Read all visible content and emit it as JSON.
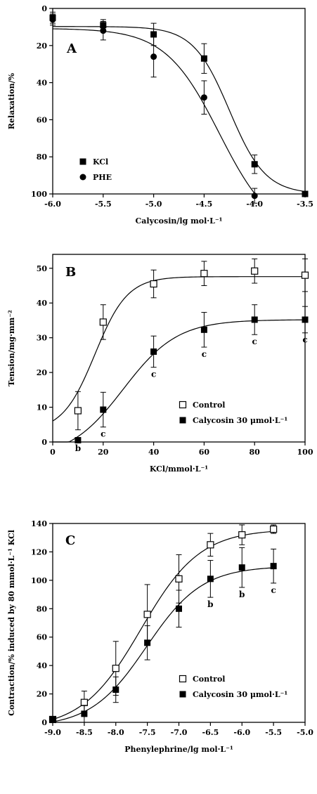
{
  "chart_data": [
    {
      "type": "scatter",
      "panel_label": "A",
      "xlabel": "Calycosin/lg mol·L⁻¹",
      "ylabel": "Relaxation/%",
      "xlim": [
        -6.0,
        -3.5
      ],
      "ylim": [
        0,
        100
      ],
      "y_inverted": true,
      "x_ticks": [
        -6.0,
        -5.5,
        -5.0,
        -4.5,
        -4.0,
        -3.5
      ],
      "x_tick_labels": [
        "-6.0",
        "-5.5",
        "-5.0",
        "-4.5",
        "-4.0",
        "-3.5"
      ],
      "y_ticks": [
        0,
        20,
        40,
        60,
        80,
        100
      ],
      "y_tick_labels": [
        "0",
        "20",
        "40",
        "60",
        "80",
        "100"
      ],
      "legend_position": "bottom-left",
      "series": [
        {
          "name": "KCl",
          "marker": "filled-square",
          "fit_curve": true,
          "points": [
            {
              "x": -6.0,
              "y": 5,
              "err": 3
            },
            {
              "x": -5.5,
              "y": 9,
              "err": 3
            },
            {
              "x": -5.0,
              "y": 14,
              "err": 6
            },
            {
              "x": -4.5,
              "y": 27,
              "err": 8
            },
            {
              "x": -4.0,
              "y": 84,
              "err": 5
            },
            {
              "x": -3.5,
              "y": 100,
              "err": 1
            }
          ]
        },
        {
          "name": "PHE",
          "marker": "filled-circle",
          "fit_curve": true,
          "points": [
            {
              "x": -6.0,
              "y": 6,
              "err": 3
            },
            {
              "x": -5.5,
              "y": 12,
              "err": 5
            },
            {
              "x": -5.0,
              "y": 26,
              "err": 11
            },
            {
              "x": -4.5,
              "y": 48,
              "err": 9
            },
            {
              "x": -4.0,
              "y": 101,
              "err": 4
            }
          ]
        }
      ]
    },
    {
      "type": "scatter",
      "panel_label": "B",
      "xlabel": "KCl/mmol·L⁻¹",
      "ylabel": "Tension/mg·mm⁻²",
      "xlim": [
        0,
        100
      ],
      "ylim": [
        0,
        54
      ],
      "x_ticks": [
        0,
        20,
        40,
        60,
        80,
        100
      ],
      "x_tick_labels": [
        "0",
        "20",
        "40",
        "60",
        "80",
        "100"
      ],
      "y_ticks": [
        0,
        10,
        20,
        30,
        40,
        50
      ],
      "y_tick_labels": [
        "0",
        "10",
        "20",
        "30",
        "40",
        "50"
      ],
      "legend_position": "bottom-right",
      "series": [
        {
          "name": "Control",
          "marker": "open-square",
          "fit_curve": true,
          "points": [
            {
              "x": 10,
              "y": 9,
              "err": 5.5
            },
            {
              "x": 20,
              "y": 34.5,
              "err": 5
            },
            {
              "x": 40,
              "y": 45.5,
              "err": 4
            },
            {
              "x": 60,
              "y": 48.5,
              "err": 3.5
            },
            {
              "x": 80,
              "y": 49.2,
              "err": 3.5
            },
            {
              "x": 100,
              "y": 48,
              "err": 4.7
            }
          ]
        },
        {
          "name": "Calycosin 30 μmol·L⁻¹",
          "marker": "filled-square",
          "fit_curve": true,
          "points": [
            {
              "x": 10,
              "y": 0.5,
              "err": 0.3
            },
            {
              "x": 20,
              "y": 9.3,
              "err": 5
            },
            {
              "x": 40,
              "y": 26,
              "err": 4.5
            },
            {
              "x": 60,
              "y": 32.3,
              "err": 5
            },
            {
              "x": 80,
              "y": 35.2,
              "err": 4.3
            },
            {
              "x": 100,
              "y": 35.2,
              "err": 3.8
            }
          ]
        }
      ],
      "annotations": [
        {
          "x": 10,
          "y": 0.5,
          "text": "b"
        },
        {
          "x": 20,
          "y": 9.3,
          "text": "c"
        },
        {
          "x": 40,
          "y": 26,
          "text": "c"
        },
        {
          "x": 60,
          "y": 32.3,
          "text": "c"
        },
        {
          "x": 80,
          "y": 35.2,
          "text": "c"
        },
        {
          "x": 100,
          "y": 35.2,
          "text": "c"
        }
      ]
    },
    {
      "type": "scatter",
      "panel_label": "C",
      "xlabel": "Phenylephrine/lg mol·L⁻¹",
      "ylabel": "Contraction/% induced by 80 mmol·L⁻¹ KCl",
      "xlim": [
        -9.0,
        -5.0
      ],
      "ylim": [
        0,
        140
      ],
      "x_ticks": [
        -9.0,
        -8.5,
        -8.0,
        -7.5,
        -7.0,
        -6.5,
        -6.0,
        -5.5,
        -5.0
      ],
      "x_tick_labels": [
        "-9.0",
        "-8.5",
        "-8.0",
        "-7.5",
        "-7.0",
        "-6.5",
        "-6.0",
        "-5.5",
        "-5.0"
      ],
      "y_ticks": [
        0,
        20,
        40,
        60,
        80,
        100,
        120,
        140
      ],
      "y_tick_labels": [
        "0",
        "20",
        "40",
        "60",
        "80",
        "100",
        "120",
        "140"
      ],
      "legend_position": "bottom-right",
      "series": [
        {
          "name": "Control",
          "marker": "open-square",
          "fit_curve": true,
          "points": [
            {
              "x": -9.0,
              "y": 2,
              "err": 2
            },
            {
              "x": -8.5,
              "y": 14,
              "err": 8
            },
            {
              "x": -8.0,
              "y": 38,
              "err": 19
            },
            {
              "x": -7.5,
              "y": 76,
              "err": 21
            },
            {
              "x": -7.0,
              "y": 101,
              "err": 17
            },
            {
              "x": -6.5,
              "y": 125,
              "err": 8
            },
            {
              "x": -6.0,
              "y": 132,
              "err": 7
            },
            {
              "x": -5.5,
              "y": 136,
              "err": 3
            }
          ]
        },
        {
          "name": "Calycosin 30 μmol·L⁻¹",
          "marker": "filled-square",
          "fit_curve": true,
          "points": [
            {
              "x": -9.0,
              "y": 2,
              "err": 2
            },
            {
              "x": -8.5,
              "y": 6,
              "err": 6
            },
            {
              "x": -8.0,
              "y": 23,
              "err": 9
            },
            {
              "x": -7.5,
              "y": 56,
              "err": 12
            },
            {
              "x": -7.0,
              "y": 80,
              "err": 13
            },
            {
              "x": -6.5,
              "y": 101,
              "err": 13
            },
            {
              "x": -6.0,
              "y": 109,
              "err": 14
            },
            {
              "x": -5.5,
              "y": 110,
              "err": 12
            }
          ]
        }
      ],
      "annotations": [
        {
          "x": -6.5,
          "y": 101,
          "text": "b"
        },
        {
          "x": -6.0,
          "y": 109,
          "text": "b"
        },
        {
          "x": -5.5,
          "y": 110,
          "text": "c"
        }
      ]
    }
  ]
}
